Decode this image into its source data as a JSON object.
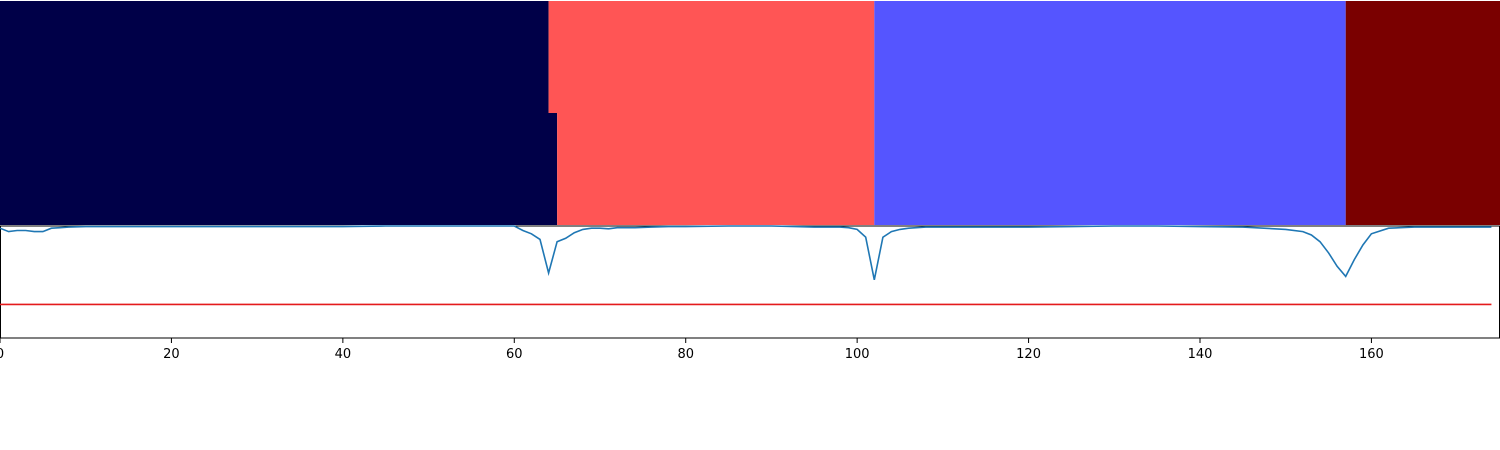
{
  "chart_data": {
    "type": "area",
    "title": "",
    "xlabel": "",
    "ylabel": "",
    "xlim": [
      0,
      175
    ],
    "grid": false,
    "legend": "none",
    "xticks": [
      {
        "value": 0,
        "label": "0"
      },
      {
        "value": 20,
        "label": "20"
      },
      {
        "value": 40,
        "label": "40"
      },
      {
        "value": 60,
        "label": "60"
      },
      {
        "value": 80,
        "label": "80"
      },
      {
        "value": 100,
        "label": "100"
      },
      {
        "value": 120,
        "label": "120"
      },
      {
        "value": 140,
        "label": "140"
      },
      {
        "value": 160,
        "label": "160"
      }
    ],
    "segment_rows": [
      {
        "segments": [
          {
            "start": 0,
            "end": 64,
            "color": "#000048"
          },
          {
            "start": 64,
            "end": 102,
            "color": "#ff5555"
          },
          {
            "start": 102,
            "end": 157,
            "color": "#5555ff"
          },
          {
            "start": 157,
            "end": 175,
            "color": "#7a0000"
          }
        ]
      },
      {
        "segments": [
          {
            "start": 0,
            "end": 65,
            "color": "#000048"
          },
          {
            "start": 65,
            "end": 102,
            "color": "#ff5555"
          },
          {
            "start": 102,
            "end": 157,
            "color": "#5555ff"
          },
          {
            "start": 157,
            "end": 175,
            "color": "#7a0000"
          }
        ]
      }
    ],
    "line_panel": {
      "ylim": [
        0,
        1
      ],
      "threshold": 0.3,
      "threshold_color": "#e41a1c",
      "series_color": "#1f77b4",
      "x": [
        0,
        1,
        2,
        3,
        4,
        5,
        6,
        7,
        8,
        10,
        12,
        14,
        16,
        18,
        20,
        25,
        30,
        35,
        40,
        45,
        50,
        55,
        60,
        61,
        62,
        63,
        64,
        65,
        66,
        67,
        68,
        69,
        70,
        71,
        72,
        74,
        76,
        78,
        80,
        85,
        90,
        95,
        98,
        99,
        100,
        101,
        102,
        103,
        104,
        105,
        106,
        108,
        110,
        115,
        120,
        125,
        130,
        135,
        140,
        145,
        150,
        152,
        153,
        154,
        155,
        156,
        157,
        158,
        159,
        160,
        162,
        165,
        170,
        174
      ],
      "y": [
        0.98,
        0.95,
        0.96,
        0.96,
        0.95,
        0.95,
        0.98,
        0.985,
        0.99,
        0.995,
        0.995,
        0.995,
        0.995,
        0.995,
        0.995,
        0.995,
        0.995,
        0.995,
        0.995,
        1.0,
        1.0,
        1.0,
        1.0,
        0.96,
        0.93,
        0.88,
        0.58,
        0.86,
        0.89,
        0.94,
        0.97,
        0.98,
        0.98,
        0.975,
        0.985,
        0.985,
        0.99,
        0.995,
        0.995,
        1.0,
        1.0,
        0.99,
        0.99,
        0.985,
        0.97,
        0.9,
        0.52,
        0.9,
        0.95,
        0.97,
        0.98,
        0.99,
        0.99,
        0.99,
        0.99,
        0.995,
        1.0,
        1.0,
        0.995,
        0.99,
        0.97,
        0.95,
        0.92,
        0.86,
        0.76,
        0.64,
        0.55,
        0.7,
        0.83,
        0.93,
        0.98,
        0.99,
        0.99,
        0.99
      ]
    }
  }
}
